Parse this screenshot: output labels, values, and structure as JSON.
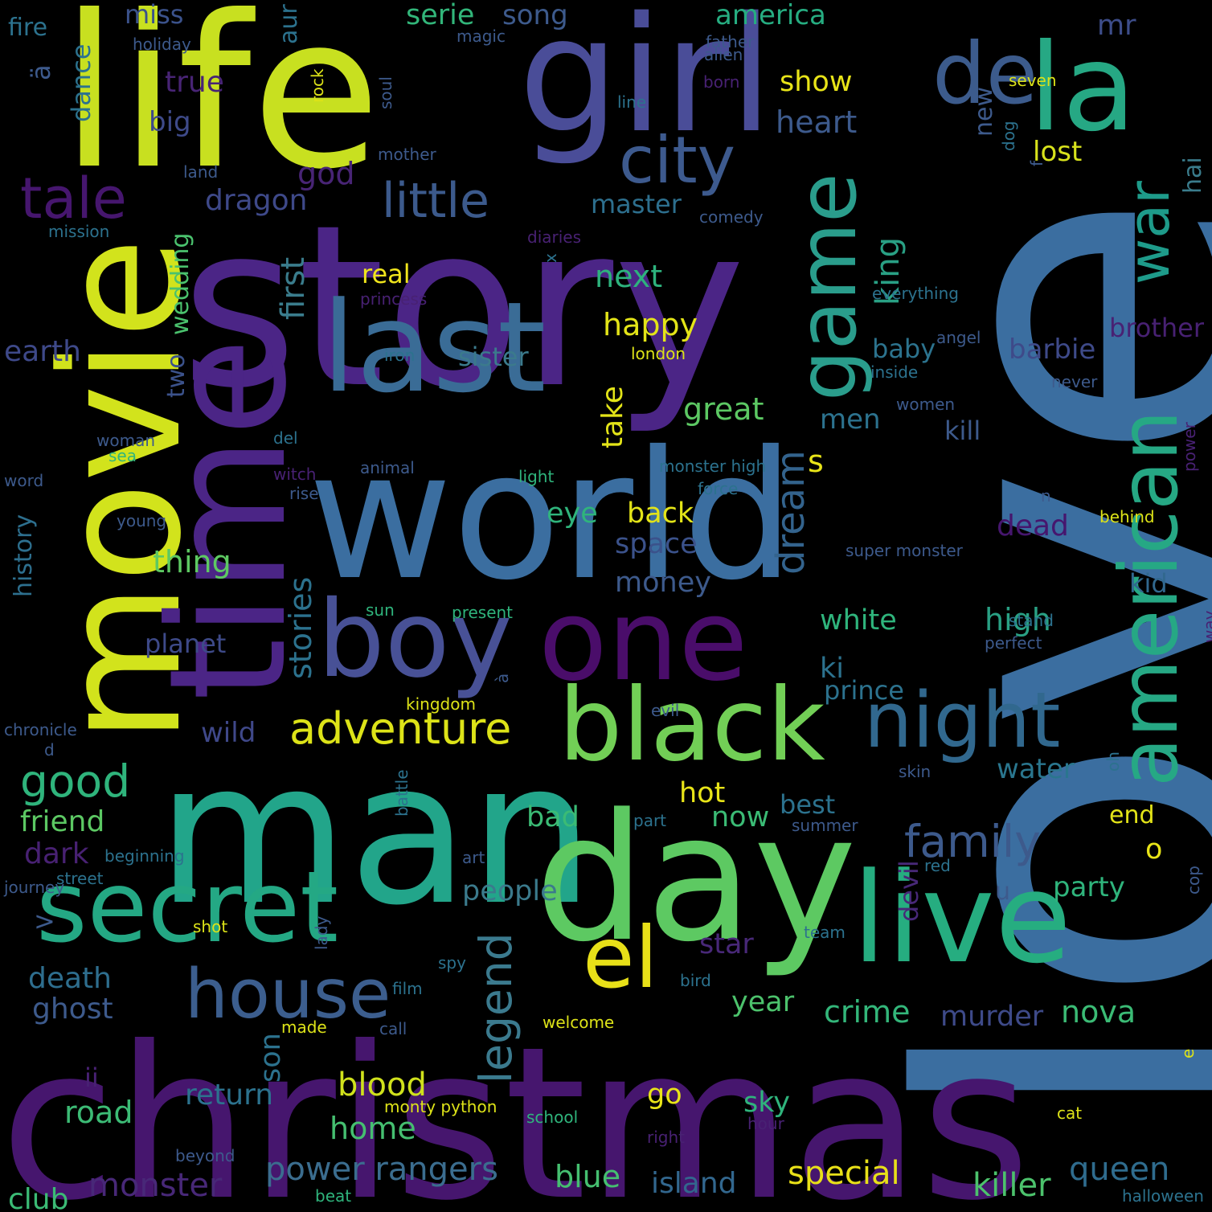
{
  "words": [
    {
      "text": "love",
      "color": "#3b6ea0"
    },
    {
      "text": "christmas",
      "color": "#46166e"
    },
    {
      "text": "story",
      "color": "#4b2586"
    },
    {
      "text": "world",
      "color": "#3b6ea0"
    },
    {
      "text": "life",
      "color": "#c8e020"
    },
    {
      "text": "girl",
      "color": "#4a4d98"
    },
    {
      "text": "man",
      "color": "#22a58a"
    },
    {
      "text": "movie",
      "color": "#d2e31c"
    },
    {
      "text": "time",
      "color": "#4b2586"
    },
    {
      "text": "day",
      "color": "#5dc962"
    },
    {
      "text": "one",
      "color": "#4a0d6a"
    },
    {
      "text": "last",
      "color": "#3a6c96"
    },
    {
      "text": "la",
      "color": "#26a884"
    },
    {
      "text": "boy",
      "color": "#485196"
    },
    {
      "text": "black",
      "color": "#72cf56"
    },
    {
      "text": "live",
      "color": "#26ad80"
    },
    {
      "text": "secret",
      "color": "#24a884"
    },
    {
      "text": "american",
      "color": "#26a884"
    },
    {
      "text": "game",
      "color": "#2a9d8c"
    },
    {
      "text": "de",
      "color": "#3c5b8c"
    },
    {
      "text": "city",
      "color": "#3d5a8e"
    },
    {
      "text": "house",
      "color": "#3c5e8e"
    },
    {
      "text": "el",
      "color": "#e8e018"
    },
    {
      "text": "night",
      "color": "#31688e"
    },
    {
      "text": "war",
      "color": "#1e9b8a"
    },
    {
      "text": "tale",
      "color": "#46166e"
    },
    {
      "text": "little",
      "color": "#3c5a8c"
    },
    {
      "text": "adventure",
      "color": "#dde318"
    },
    {
      "text": "legend",
      "color": "#3b7a8e"
    },
    {
      "text": "family",
      "color": "#3d5a8c"
    },
    {
      "text": "king",
      "color": "#29a084"
    },
    {
      "text": "first",
      "color": "#3a7c8c"
    },
    {
      "text": "good",
      "color": "#2fb47c"
    },
    {
      "text": "dream",
      "color": "#33638d"
    },
    {
      "text": "stories",
      "color": "#2c728e"
    },
    {
      "text": "power rangers",
      "color": "#3b6d8f"
    },
    {
      "text": "special",
      "color": "#e8e018"
    },
    {
      "text": "killer",
      "color": "#4cc26c"
    },
    {
      "text": "monster",
      "color": "#482878"
    },
    {
      "text": "island",
      "color": "#32678e"
    },
    {
      "text": "queen",
      "color": "#2f6c8e"
    },
    {
      "text": "blue",
      "color": "#45bf70"
    },
    {
      "text": "club",
      "color": "#3bbb75"
    },
    {
      "text": "home",
      "color": "#45bf70"
    },
    {
      "text": "blood",
      "color": "#d0e11c"
    },
    {
      "text": "crime",
      "color": "#33b67a"
    },
    {
      "text": "murder",
      "color": "#3e4a89"
    },
    {
      "text": "nova",
      "color": "#3bbb75"
    },
    {
      "text": "year",
      "color": "#4cc26c"
    },
    {
      "text": "death",
      "color": "#2e6e8e"
    },
    {
      "text": "ghost",
      "color": "#3d5a8c"
    },
    {
      "text": "friend",
      "color": "#5cc863"
    },
    {
      "text": "dark",
      "color": "#482173"
    },
    {
      "text": "road",
      "color": "#3cbb75"
    },
    {
      "text": "history",
      "color": "#2d6f8e"
    },
    {
      "text": "earth",
      "color": "#3e4989"
    },
    {
      "text": "thing",
      "color": "#5dc962"
    },
    {
      "text": "planet",
      "color": "#3e4a89"
    },
    {
      "text": "wild",
      "color": "#3f4889"
    },
    {
      "text": "dragon",
      "color": "#3e4989"
    },
    {
      "text": "two",
      "color": "#3b528b"
    },
    {
      "text": "wedding",
      "color": "#4ac16d"
    },
    {
      "text": "sister",
      "color": "#3b7a8c"
    },
    {
      "text": "great",
      "color": "#5cc863"
    },
    {
      "text": "take",
      "color": "#e3e418"
    },
    {
      "text": "happy",
      "color": "#e3e418"
    },
    {
      "text": "next",
      "color": "#2db27d"
    },
    {
      "text": "real",
      "color": "#f0e51c"
    },
    {
      "text": "master",
      "color": "#2d6f8e"
    },
    {
      "text": "show",
      "color": "#e8e418"
    },
    {
      "text": "heart",
      "color": "#3d5a8c"
    },
    {
      "text": "god",
      "color": "#482475"
    },
    {
      "text": "true",
      "color": "#482475"
    },
    {
      "text": "big",
      "color": "#3e4a89"
    },
    {
      "text": "miss",
      "color": "#3b528b"
    },
    {
      "text": "song",
      "color": "#3d5a8c"
    },
    {
      "text": "america",
      "color": "#26ad81"
    },
    {
      "text": "serie",
      "color": "#32b67a"
    },
    {
      "text": "mr",
      "color": "#3d4d8a"
    },
    {
      "text": "lost",
      "color": "#d8e21c"
    },
    {
      "text": "new",
      "color": "#3d5a8c"
    },
    {
      "text": "hai",
      "color": "#3a7c8c"
    },
    {
      "text": "brother",
      "color": "#482173"
    },
    {
      "text": "barbie",
      "color": "#3e4a89"
    },
    {
      "text": "baby",
      "color": "#2c738e"
    },
    {
      "text": "men",
      "color": "#2c728e"
    },
    {
      "text": "kill",
      "color": "#3d5a8c"
    },
    {
      "text": "s",
      "color": "#e8e418"
    },
    {
      "text": "back",
      "color": "#e3e418"
    },
    {
      "text": "space",
      "color": "#3b528b"
    },
    {
      "text": "money",
      "color": "#3d5a8c"
    },
    {
      "text": "dead",
      "color": "#46166e"
    },
    {
      "text": "white",
      "color": "#2fb47c"
    },
    {
      "text": "high",
      "color": "#29a084"
    },
    {
      "text": "kid",
      "color": "#31688e"
    },
    {
      "text": "ki",
      "color": "#2c728e"
    },
    {
      "text": "prince",
      "color": "#2c728e"
    },
    {
      "text": "water",
      "color": "#2a768e"
    },
    {
      "text": "best",
      "color": "#2c728e"
    },
    {
      "text": "now",
      "color": "#3bbb75"
    },
    {
      "text": "bad",
      "color": "#3bbb75"
    },
    {
      "text": "hot",
      "color": "#e8e418"
    },
    {
      "text": "o",
      "color": "#e8e418"
    },
    {
      "text": "end",
      "color": "#e3e418"
    },
    {
      "text": "party",
      "color": "#2fb47c"
    },
    {
      "text": "devil",
      "color": "#482878"
    },
    {
      "text": "people",
      "color": "#3b7a8c"
    },
    {
      "text": "star",
      "color": "#482878"
    },
    {
      "text": "go",
      "color": "#e8e418"
    },
    {
      "text": "sky",
      "color": "#2fb47c"
    },
    {
      "text": "son",
      "color": "#2c728e"
    },
    {
      "text": "return",
      "color": "#2c728e"
    },
    {
      "text": "ii",
      "color": "#482173"
    },
    {
      "text": "eye",
      "color": "#2fb47c"
    },
    {
      "text": "u",
      "color": "#3d5a8c"
    },
    {
      "text": ">",
      "color": "#3d5a8c"
    },
    {
      "text": "ä",
      "color": "#3d5a8c"
    },
    {
      "text": "dance",
      "color": "#2c728e"
    },
    {
      "text": "fire",
      "color": "#2c728e"
    },
    {
      "text": "aur",
      "color": "#2c728e"
    },
    {
      "text": "holiday",
      "color": "#3d5a8c"
    },
    {
      "text": "magic",
      "color": "#3d5a8c"
    },
    {
      "text": "father",
      "color": "#3d5a8c"
    },
    {
      "text": "alien",
      "color": "#3d5a8c"
    },
    {
      "text": "born",
      "color": "#482173"
    },
    {
      "text": "line",
      "color": "#2c728e"
    },
    {
      "text": "rock",
      "color": "#dde318"
    },
    {
      "text": "soul",
      "color": "#3d5a8c"
    },
    {
      "text": "mother",
      "color": "#3d5a8c"
    },
    {
      "text": "seven",
      "color": "#dde318"
    },
    {
      "text": "dog",
      "color": "#2c728e"
    },
    {
      "text": "land",
      "color": "#3d5a8c"
    },
    {
      "text": "mission",
      "color": "#2c728e"
    },
    {
      "text": "comedy",
      "color": "#3d5a8c"
    },
    {
      "text": "diaries",
      "color": "#482173"
    },
    {
      "text": "f",
      "color": "#3d5a8c"
    },
    {
      "text": "everything",
      "color": "#2c728e"
    },
    {
      "text": "x",
      "color": "#2c728e"
    },
    {
      "text": "princess",
      "color": "#482173"
    },
    {
      "text": "angel",
      "color": "#3d5a8c"
    },
    {
      "text": "iron",
      "color": "#2c728e"
    },
    {
      "text": "london",
      "color": "#dde318"
    },
    {
      "text": "inside",
      "color": "#2c728e"
    },
    {
      "text": "never",
      "color": "#3d5a8c"
    },
    {
      "text": "women",
      "color": "#3d5a8c"
    },
    {
      "text": "woman",
      "color": "#3d5a8c"
    },
    {
      "text": "del",
      "color": "#2c728e"
    },
    {
      "text": "sea",
      "color": "#2fb47c"
    },
    {
      "text": "word",
      "color": "#3d5a8c"
    },
    {
      "text": "witch",
      "color": "#482173"
    },
    {
      "text": "animal",
      "color": "#3d5a8c"
    },
    {
      "text": "monster high",
      "color": "#2c728e"
    },
    {
      "text": "light",
      "color": "#2fb47c"
    },
    {
      "text": "force",
      "color": "#2c728e"
    },
    {
      "text": "rise",
      "color": "#3d5a8c"
    },
    {
      "text": "n",
      "color": "#3d5a8c"
    },
    {
      "text": "behind",
      "color": "#dde318"
    },
    {
      "text": "young",
      "color": "#3d5a8c"
    },
    {
      "text": "power",
      "color": "#482173"
    },
    {
      "text": "super monster",
      "color": "#3d5a8c"
    },
    {
      "text": "sun",
      "color": "#2fb47c"
    },
    {
      "text": "present",
      "color": "#2fb47c"
    },
    {
      "text": "perfect",
      "color": "#3d5a8c"
    },
    {
      "text": "stand",
      "color": "#2c728e"
    },
    {
      "text": "à",
      "color": "#3d5a8c"
    },
    {
      "text": "way",
      "color": "#482173"
    },
    {
      "text": "kingdom",
      "color": "#dde318"
    },
    {
      "text": "evil",
      "color": "#3d5a8c"
    },
    {
      "text": "chronicle",
      "color": "#3d5a8c"
    },
    {
      "text": "d",
      "color": "#3d5a8c"
    },
    {
      "text": "oh",
      "color": "#2c728e"
    },
    {
      "text": "skin",
      "color": "#3d5a8c"
    },
    {
      "text": "part",
      "color": "#2c728e"
    },
    {
      "text": "summer",
      "color": "#3d5a8c"
    },
    {
      "text": "battle",
      "color": "#2c728e"
    },
    {
      "text": "beginning",
      "color": "#2c728e"
    },
    {
      "text": "art",
      "color": "#3d5a8c"
    },
    {
      "text": "red",
      "color": "#2c728e"
    },
    {
      "text": "street",
      "color": "#2c728e"
    },
    {
      "text": "journey",
      "color": "#3d5a8c"
    },
    {
      "text": "cop",
      "color": "#3d5a8c"
    },
    {
      "text": "shot",
      "color": "#dde318"
    },
    {
      "text": "lady",
      "color": "#3d5a8c"
    },
    {
      "text": "team",
      "color": "#2c728e"
    },
    {
      "text": "spy",
      "color": "#2c728e"
    },
    {
      "text": "film",
      "color": "#2c728e"
    },
    {
      "text": "bird",
      "color": "#2c728e"
    },
    {
      "text": "made",
      "color": "#dde318"
    },
    {
      "text": "call",
      "color": "#3d5a8c"
    },
    {
      "text": "welcome",
      "color": "#dde318"
    },
    {
      "text": "monty python",
      "color": "#dde318"
    },
    {
      "text": "school",
      "color": "#2fb47c"
    },
    {
      "text": "right",
      "color": "#482173"
    },
    {
      "text": "hour",
      "color": "#482173"
    },
    {
      "text": "cat",
      "color": "#dde318"
    },
    {
      "text": "e",
      "color": "#dde318"
    },
    {
      "text": "beyond",
      "color": "#3d5a8c"
    },
    {
      "text": "beat",
      "color": "#2fb47c"
    },
    {
      "text": "halloween",
      "color": "#2c728e"
    },
    {
      "text": "free",
      "color": "#3d5a8c"
    }
  ]
}
